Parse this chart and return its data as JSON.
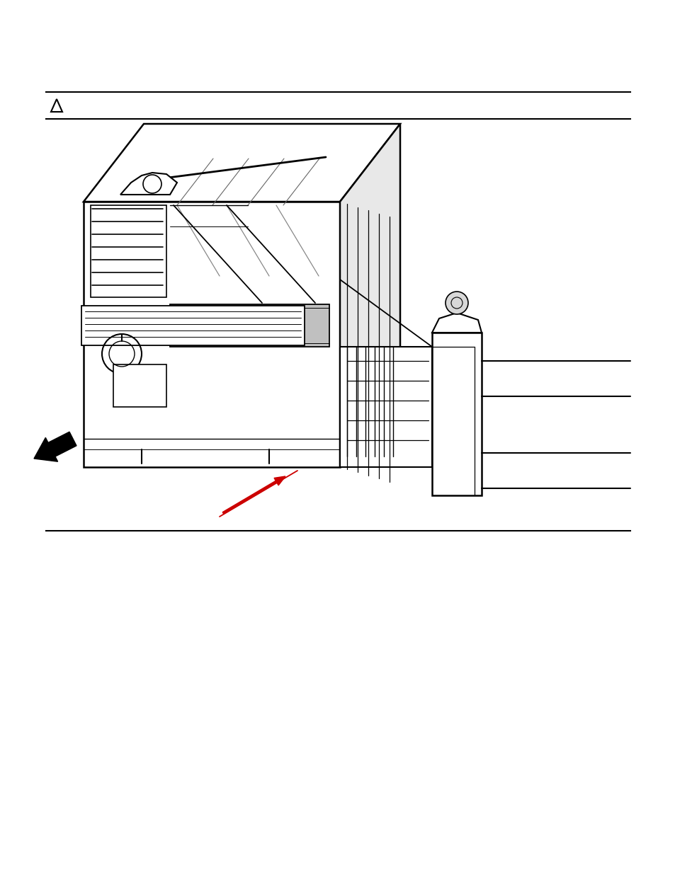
{
  "background_color": "#ffffff",
  "fig_width": 9.54,
  "fig_height": 12.35,
  "line_color": "#000000",
  "red_color": "#cc0000"
}
